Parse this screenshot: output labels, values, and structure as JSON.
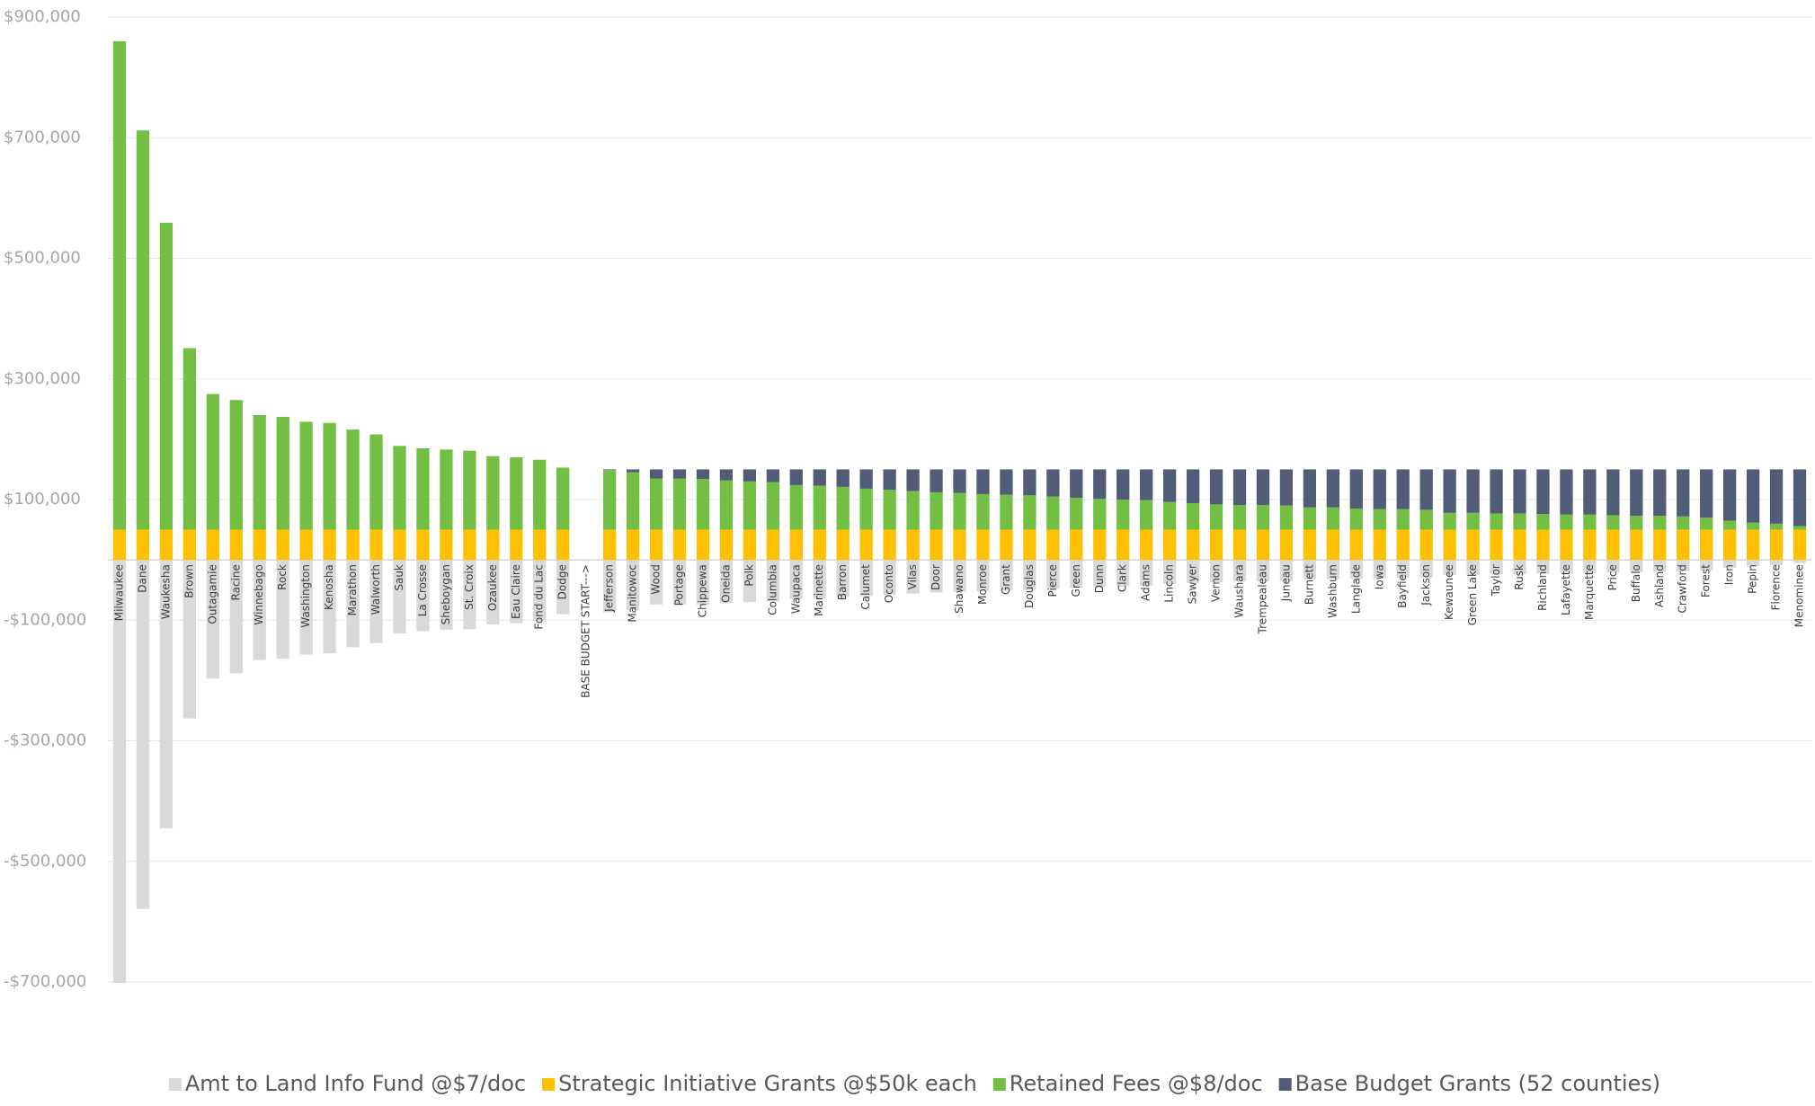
{
  "chart_data": {
    "type": "stacked-bar",
    "categories": [
      "Milwaukee",
      "Dane",
      "Waukesha",
      "Brown",
      "Outagamie",
      "Racine",
      "Winnebago",
      "Rock",
      "Washington",
      "Kenosha",
      "Marathon",
      "Walworth",
      "Sauk",
      "La Crosse",
      "Sheboygan",
      "St. Croix",
      "Ozaukee",
      "Eau Claire",
      "Fond du Lac",
      "Dodge",
      "BASE BUDGET START--->",
      "Jefferson",
      "Manitowoc",
      "Wood",
      "Portage",
      "Chippewa",
      "Oneida",
      "Polk",
      "Columbia",
      "Waupaca",
      "Marinette",
      "Barron",
      "Calumet",
      "Oconto",
      "Vilas",
      "Door",
      "Shawano",
      "Monroe",
      "Grant",
      "Douglas",
      "Pierce",
      "Green",
      "Dunn",
      "Clark",
      "Adams",
      "Lincoln",
      "Sawyer",
      "Vernon",
      "Waushara",
      "Trempealeau",
      "Juneau",
      "Burnett",
      "Washburn",
      "Langlade",
      "Iowa",
      "Bayfield",
      "Jackson",
      "Kewaunee",
      "Green Lake",
      "Taylor",
      "Rusk",
      "Richland",
      "Lafayette",
      "Marquette",
      "Price",
      "Buffalo",
      "Ashland",
      "Crawford",
      "Forest",
      "Iron",
      "Pepin",
      "Florence",
      "Menominee"
    ],
    "series": [
      {
        "name": "Amt to Land Info Fund @$7/doc",
        "color": "#d9d9d9",
        "values": [
          -709000,
          -579000,
          -445000,
          -263000,
          -197000,
          -188000,
          -166000,
          -164000,
          -157000,
          -155000,
          -145000,
          -138000,
          -122000,
          -118000,
          -116000,
          -115000,
          -107000,
          -105000,
          -102000,
          -90000,
          null,
          -87000,
          -83000,
          -74000,
          -74000,
          -74000,
          -72000,
          -70000,
          -69000,
          -65000,
          -64000,
          -62000,
          -60000,
          -58000,
          -56000,
          -54000,
          -53000,
          -52000,
          -51000,
          -50000,
          -48000,
          -46000,
          -45000,
          -44000,
          -43000,
          -40000,
          -39000,
          -37000,
          -36000,
          -36000,
          -35000,
          -32000,
          -32000,
          -31000,
          -30000,
          -30000,
          -29000,
          -25000,
          -25000,
          -24000,
          -24000,
          -23000,
          -22000,
          -22000,
          -21000,
          -20000,
          -20000,
          -19000,
          -18000,
          -13000,
          -11000,
          -9000,
          -5000
        ]
      },
      {
        "name": "Strategic Initiative Grants @$50k each",
        "color": "#ffc000",
        "values": [
          50000,
          50000,
          50000,
          50000,
          50000,
          50000,
          50000,
          50000,
          50000,
          50000,
          50000,
          50000,
          50000,
          50000,
          50000,
          50000,
          50000,
          50000,
          50000,
          50000,
          null,
          50000,
          50000,
          50000,
          50000,
          50000,
          50000,
          50000,
          50000,
          50000,
          50000,
          50000,
          50000,
          50000,
          50000,
          50000,
          50000,
          50000,
          50000,
          50000,
          50000,
          50000,
          50000,
          50000,
          50000,
          50000,
          50000,
          50000,
          50000,
          50000,
          50000,
          50000,
          50000,
          50000,
          50000,
          50000,
          50000,
          50000,
          50000,
          50000,
          50000,
          50000,
          50000,
          50000,
          50000,
          50000,
          50000,
          50000,
          50000,
          50000,
          50000,
          50000,
          50000
        ]
      },
      {
        "name": "Retained Fees @$8/doc",
        "color": "#72bf44",
        "values": [
          810000,
          662000,
          509000,
          301000,
          225000,
          215000,
          190000,
          187000,
          179000,
          177000,
          166000,
          158000,
          139000,
          135000,
          133000,
          131000,
          122000,
          120000,
          116000,
          103000,
          null,
          99000,
          95000,
          85000,
          85000,
          84000,
          82000,
          80000,
          79000,
          74000,
          73000,
          71000,
          68000,
          66000,
          64000,
          62000,
          61000,
          59000,
          58000,
          57000,
          55000,
          53000,
          51000,
          50000,
          49000,
          46000,
          44000,
          42000,
          41000,
          41000,
          40000,
          37000,
          37000,
          35000,
          34000,
          34000,
          33000,
          28000,
          28000,
          27000,
          27000,
          26000,
          25000,
          25000,
          24000,
          23000,
          23000,
          22000,
          20000,
          15000,
          12000,
          10000,
          6000
        ]
      },
      {
        "name": "Base Budget Grants (52 counties)",
        "color": "#515c76",
        "values": [
          null,
          null,
          null,
          null,
          null,
          null,
          null,
          null,
          null,
          null,
          null,
          null,
          null,
          null,
          null,
          null,
          null,
          null,
          null,
          null,
          null,
          1000,
          5000,
          15000,
          15000,
          16000,
          18000,
          20000,
          21000,
          26000,
          27000,
          29000,
          32000,
          34000,
          36000,
          38000,
          39000,
          41000,
          42000,
          43000,
          45000,
          47000,
          49000,
          50000,
          51000,
          54000,
          56000,
          58000,
          59000,
          59000,
          60000,
          63000,
          63000,
          65000,
          66000,
          66000,
          67000,
          72000,
          72000,
          73000,
          73000,
          74000,
          75000,
          75000,
          76000,
          77000,
          77000,
          78000,
          80000,
          85000,
          88000,
          90000,
          94000
        ]
      }
    ],
    "ylim": [
      -700000,
      900000
    ],
    "yticks": [
      {
        "value": 900000,
        "label": "$900,000"
      },
      {
        "value": 700000,
        "label": "$700,000"
      },
      {
        "value": 500000,
        "label": "$500,000"
      },
      {
        "value": 300000,
        "label": "$300,000"
      },
      {
        "value": 100000,
        "label": "$100,000"
      },
      {
        "value": -100000,
        "label": "-$100,000"
      },
      {
        "value": -300000,
        "label": "-$300,000"
      },
      {
        "value": -500000,
        "label": "-$500,000"
      },
      {
        "value": -700000,
        "label": "-$700,000"
      }
    ],
    "grid": true,
    "legend": "bottom"
  }
}
